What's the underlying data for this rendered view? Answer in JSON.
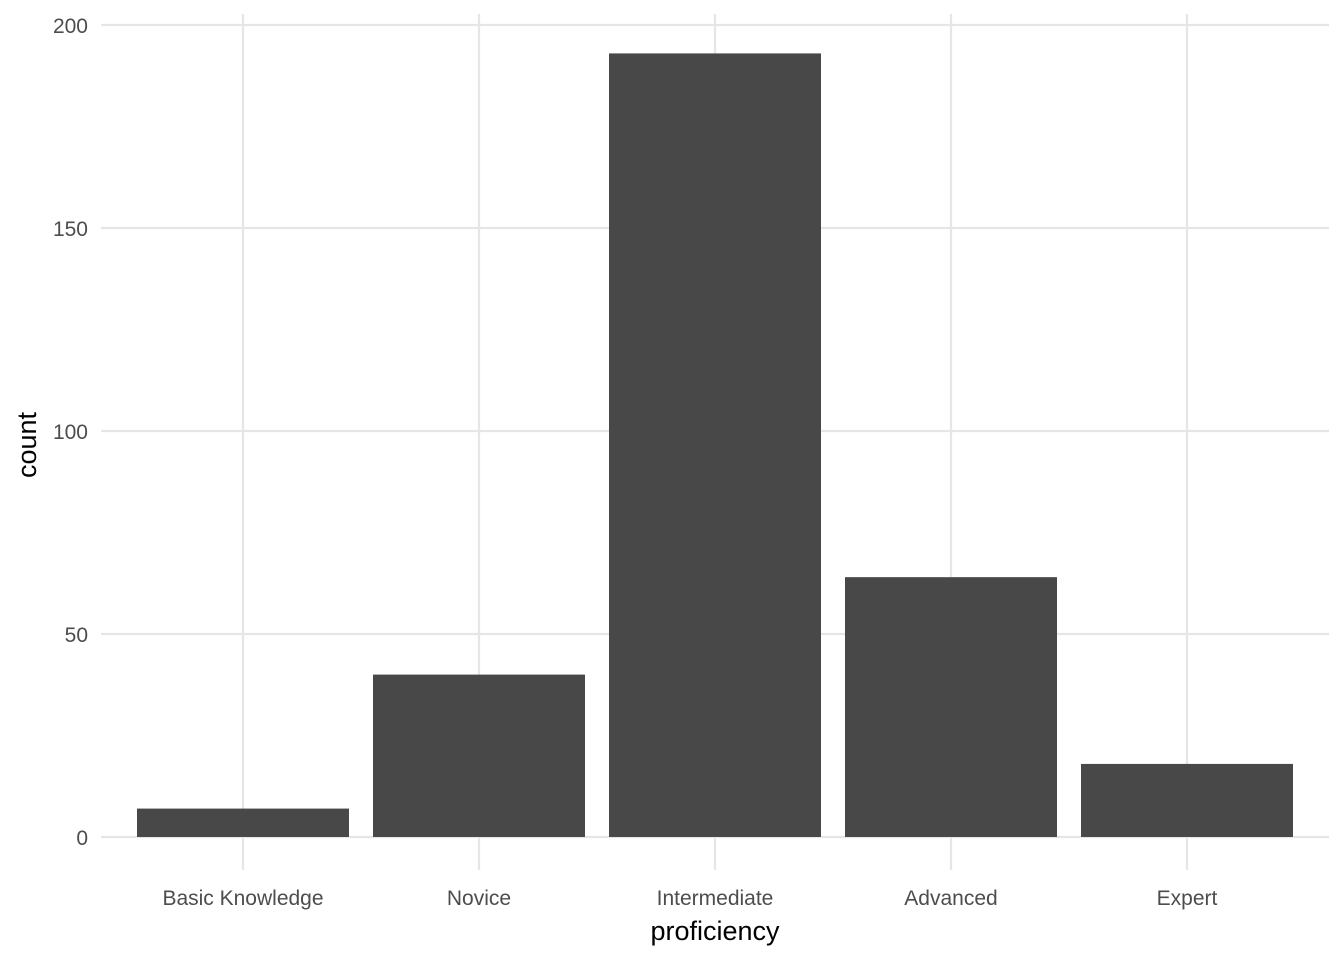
{
  "chart_data": {
    "type": "bar",
    "categories": [
      "Basic Knowledge",
      "Novice",
      "Intermediate",
      "Advanced",
      "Expert"
    ],
    "values": [
      7,
      40,
      193,
      64,
      18
    ],
    "xlabel": "proficiency",
    "ylabel": "count",
    "ylim": [
      0,
      200
    ],
    "yticks": [
      0,
      50,
      100,
      150,
      200
    ],
    "grid": true,
    "legend": "none",
    "colors": {
      "bar": "#484848",
      "grid": "#e6e6e6",
      "tick_text": "#4d4d4d",
      "title_text": "#000000",
      "background": "#ffffff"
    }
  }
}
